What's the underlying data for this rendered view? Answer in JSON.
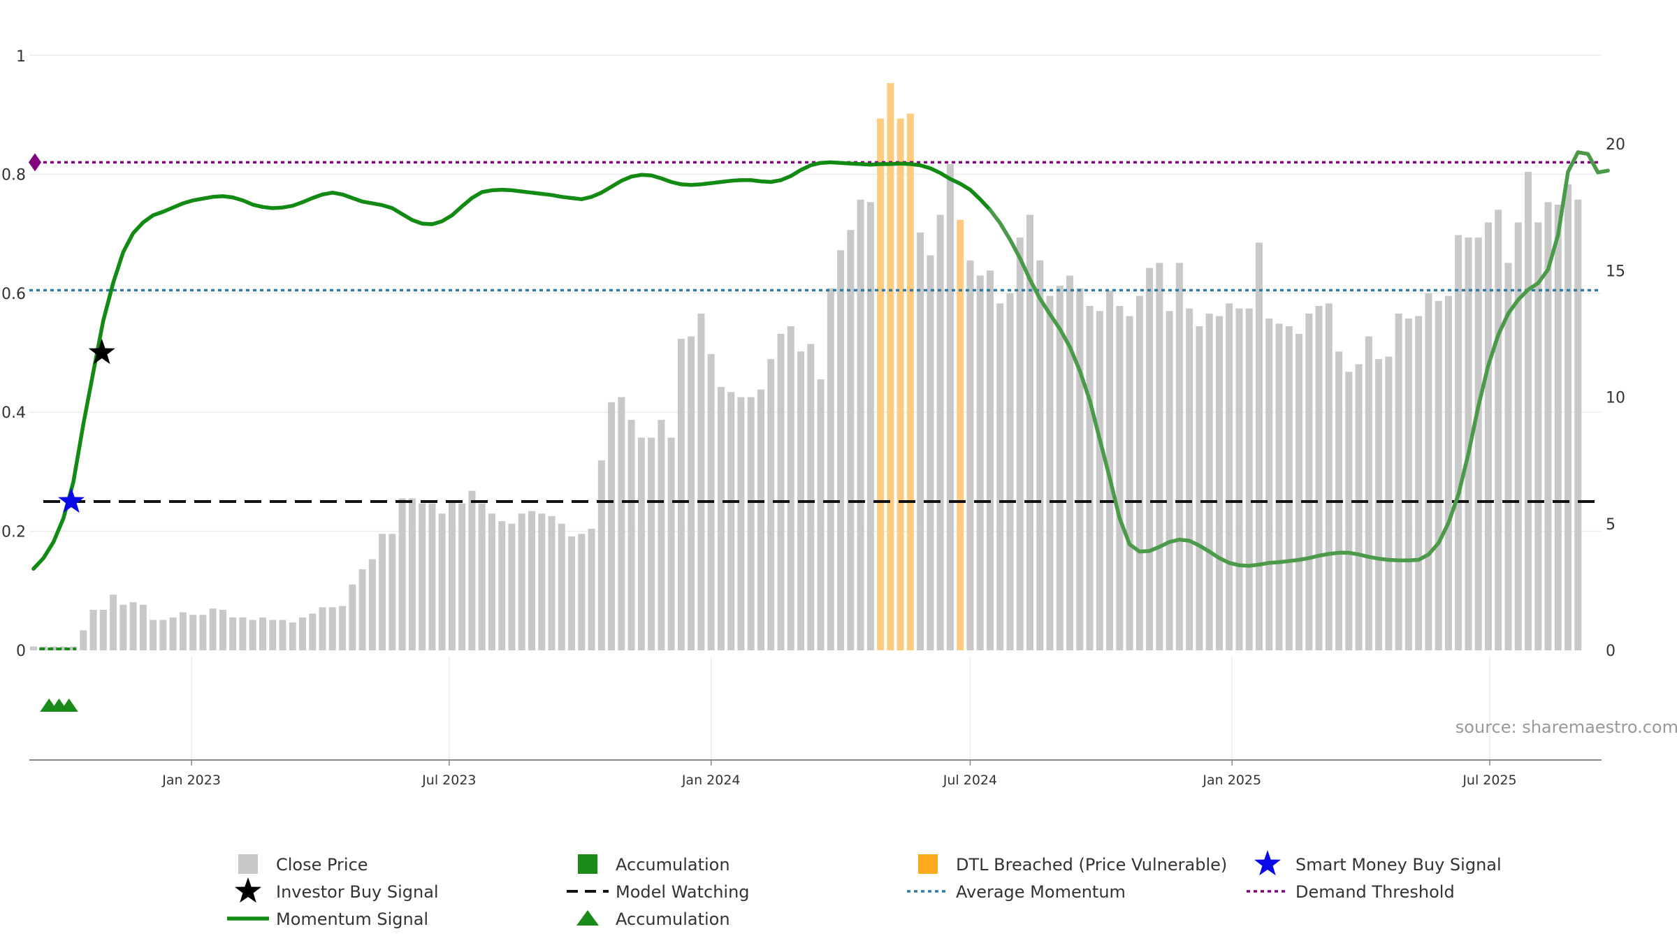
{
  "chart_data": {
    "type": "bar",
    "title": "",
    "xlabel": "",
    "ylabel": "",
    "source": "source: sharemaestro.com",
    "x_ticks": [
      "Jan 2023",
      "Jul 2023",
      "Jan 2024",
      "Jul 2024",
      "Jan 2025",
      "Jul 2025"
    ],
    "y_left": {
      "ticks": [
        "0",
        "0.2",
        "0.4",
        "0.6",
        "0.8",
        "1"
      ],
      "range": [
        0,
        1
      ]
    },
    "y_right": {
      "ticks": [
        "0",
        "5",
        "10",
        "15",
        "20"
      ],
      "range": [
        0,
        22.4
      ]
    },
    "grid": true,
    "legend_position": "bottom",
    "colors": {
      "close_price": "#c8c8c8",
      "dtl_breached": "#ffcb80",
      "momentum": "#138a13",
      "momentum_faded": "#4a9a4a",
      "model_watching": "#111111",
      "average_momentum": "#2f7aa5",
      "demand_threshold": "#800080",
      "smart_money": "#0a0ae6",
      "investor_buy": "#000000",
      "accumulation": "#1a8a1a"
    },
    "thresholds": {
      "model_watching": 0.25,
      "average_momentum": 0.605,
      "demand_threshold": 0.82
    },
    "close_price": {
      "name": "Close Price",
      "first_date": "2022-09-12",
      "interval_days": 7,
      "values": [
        0.15,
        0.15,
        0.15,
        0.15,
        0.15,
        0.79,
        1.6,
        1.6,
        2.2,
        1.8,
        1.9,
        1.8,
        1.2,
        1.2,
        1.3,
        1.5,
        1.4,
        1.4,
        1.65,
        1.6,
        1.3,
        1.3,
        1.2,
        1.3,
        1.2,
        1.2,
        1.1,
        1.3,
        1.45,
        1.7,
        1.7,
        1.75,
        2.6,
        3.2,
        3.6,
        4.6,
        4.6,
        6.0,
        6.0,
        5.8,
        5.8,
        5.4,
        5.9,
        5.8,
        6.3,
        5.8,
        5.4,
        5.1,
        5.0,
        5.4,
        5.5,
        5.4,
        5.3,
        5.0,
        4.5,
        4.6,
        4.8,
        7.5,
        9.8,
        10.0,
        9.1,
        8.4,
        8.4,
        9.1,
        8.4,
        12.3,
        12.4,
        13.3,
        11.7,
        10.4,
        10.2,
        10.0,
        10.0,
        10.3,
        11.5,
        12.5,
        12.8,
        11.8,
        12.1,
        10.7,
        14.3,
        15.8,
        16.6,
        17.8,
        17.7,
        21.0,
        22.4,
        21.0,
        21.2,
        16.5,
        15.6,
        17.2,
        19.2,
        17.0,
        15.4,
        14.8,
        15.0,
        13.7,
        14.1,
        16.3,
        17.2,
        15.4,
        14.0,
        14.4,
        14.8,
        14.3,
        13.6,
        13.4,
        14.2,
        13.6,
        13.2,
        14.0,
        15.1,
        15.3,
        13.4,
        15.3,
        13.5,
        12.8,
        13.3,
        13.2,
        13.7,
        13.5,
        13.5,
        16.1,
        13.1,
        12.9,
        12.8,
        12.5,
        13.3,
        13.6,
        13.7,
        11.8,
        11.0,
        11.3,
        12.4,
        11.5,
        11.6,
        13.3,
        13.1,
        13.2,
        14.1,
        13.8,
        14.0,
        16.4,
        16.3,
        16.3,
        16.9,
        17.4,
        15.3,
        16.9,
        18.9,
        16.9,
        17.7,
        17.6,
        18.4,
        17.8
      ]
    },
    "dtl_breached": {
      "name": "DTL Breached (Price Vulnerable)",
      "indices": [
        85,
        86,
        87,
        88,
        93
      ]
    },
    "momentum": {
      "name": "Momentum Signal",
      "first_date": "2022-09-12",
      "interval_days": 7,
      "values": [
        0.137,
        0.155,
        0.182,
        0.222,
        0.283,
        0.38,
        0.468,
        0.554,
        0.618,
        0.669,
        0.701,
        0.719,
        0.731,
        0.737,
        0.744,
        0.751,
        0.756,
        0.759,
        0.762,
        0.763,
        0.761,
        0.756,
        0.749,
        0.745,
        0.743,
        0.744,
        0.747,
        0.753,
        0.76,
        0.766,
        0.769,
        0.766,
        0.76,
        0.754,
        0.751,
        0.748,
        0.743,
        0.733,
        0.723,
        0.717,
        0.716,
        0.721,
        0.731,
        0.746,
        0.76,
        0.77,
        0.773,
        0.774,
        0.773,
        0.771,
        0.769,
        0.767,
        0.765,
        0.762,
        0.76,
        0.758,
        0.762,
        0.769,
        0.779,
        0.789,
        0.796,
        0.799,
        0.798,
        0.793,
        0.787,
        0.783,
        0.782,
        0.783,
        0.785,
        0.787,
        0.789,
        0.79,
        0.79,
        0.788,
        0.787,
        0.79,
        0.797,
        0.807,
        0.815,
        0.819,
        0.82,
        0.819,
        0.818,
        0.817,
        0.816,
        0.817,
        0.817,
        0.818,
        0.817,
        0.815,
        0.81,
        0.802,
        0.792,
        0.784,
        0.774,
        0.758,
        0.74,
        0.718,
        0.69,
        0.659,
        0.623,
        0.591,
        0.565,
        0.54,
        0.51,
        0.47,
        0.42,
        0.355,
        0.29,
        0.222,
        0.178,
        0.166,
        0.167,
        0.174,
        0.182,
        0.186,
        0.184,
        0.176,
        0.166,
        0.155,
        0.147,
        0.143,
        0.142,
        0.144,
        0.147,
        0.148,
        0.15,
        0.152,
        0.155,
        0.159,
        0.162,
        0.164,
        0.164,
        0.161,
        0.157,
        0.154,
        0.152,
        0.151,
        0.151,
        0.152,
        0.161,
        0.18,
        0.214,
        0.262,
        0.33,
        0.41,
        0.479,
        0.53,
        0.566,
        0.589,
        0.606,
        0.617,
        0.64,
        0.698,
        0.804,
        0.837,
        0.834,
        0.803,
        0.806
      ]
    },
    "momentum_faded_from_index": 96,
    "smart_money_buy": {
      "name": "Smart Money Buy Signal",
      "index": 4,
      "value": 0.25
    },
    "investor_buy": {
      "name": "Investor Buy Signal",
      "index": 7,
      "value": 0.5
    },
    "accumulation_markers": {
      "name": "Accumulation",
      "indices": [
        1,
        2,
        3
      ]
    },
    "accumulation_band_indices": [
      1,
      2,
      3,
      4
    ],
    "demand_threshold_marker_value": 0.82
  },
  "legend": [
    {
      "key": "close_price",
      "label": "Close Price",
      "symbol": "square-gray"
    },
    {
      "key": "accumulation_band",
      "label": "Accumulation",
      "symbol": "square-green"
    },
    {
      "key": "dtl",
      "label": "DTL Breached (Price Vulnerable)",
      "symbol": "square-orange"
    },
    {
      "key": "smart_money",
      "label": "Smart Money Buy Signal",
      "symbol": "star-blue"
    },
    {
      "key": "investor_buy",
      "label": "Investor Buy Signal",
      "symbol": "star-black"
    },
    {
      "key": "model_watching",
      "label": "Model Watching",
      "symbol": "dash-black"
    },
    {
      "key": "avg_momentum",
      "label": "Average Momentum",
      "symbol": "dot-blue"
    },
    {
      "key": "demand_threshold",
      "label": "Demand Threshold",
      "symbol": "dot-purple"
    },
    {
      "key": "momentum",
      "label": "Momentum Signal",
      "symbol": "line-green"
    },
    {
      "key": "accumulation_triangle",
      "label": "Accumulation",
      "symbol": "triangle-green"
    }
  ]
}
